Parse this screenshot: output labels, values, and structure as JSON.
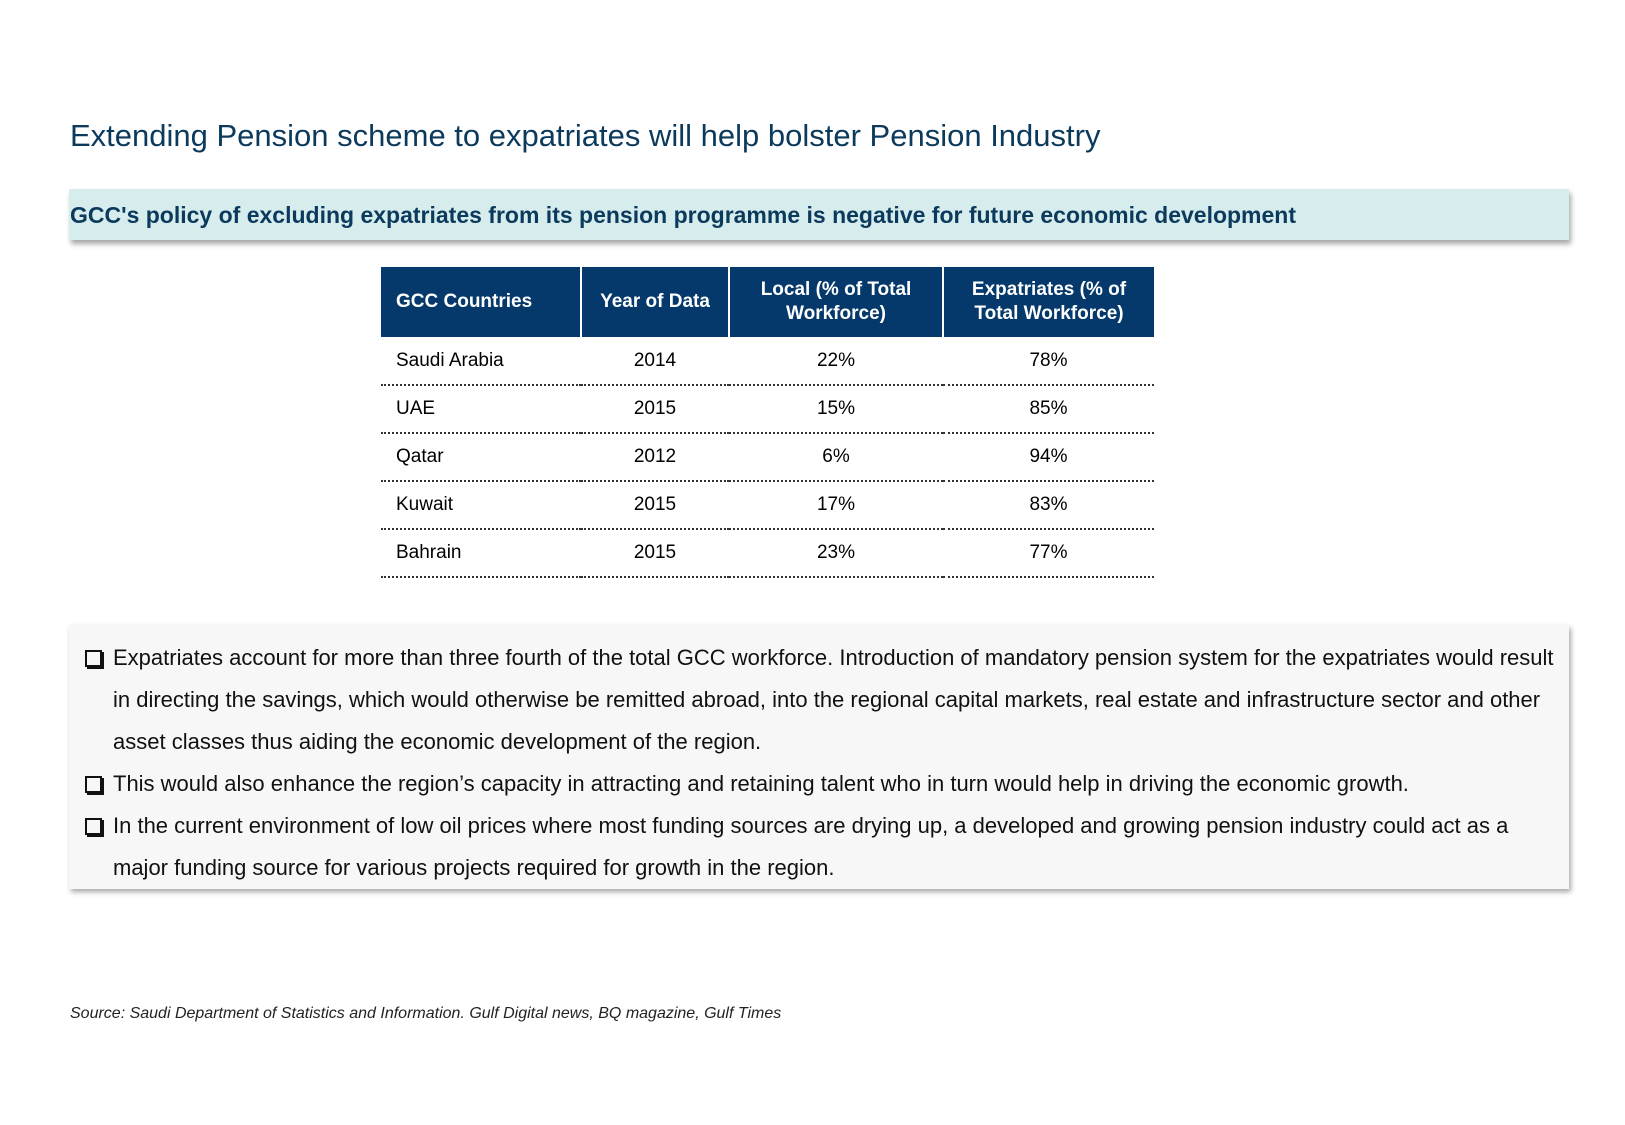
{
  "title": "Extending Pension scheme to expatriates will help bolster Pension Industry",
  "banner": "GCC's policy of excluding expatriates from its pension programme is negative for future economic development",
  "table": {
    "headers": [
      "GCC Countries",
      "Year of Data",
      "Local (% of Total Workforce)",
      "Expatriates (% of Total Workforce)"
    ],
    "rows": [
      [
        "Saudi Arabia",
        "2014",
        "22%",
        "78%"
      ],
      [
        "UAE",
        "2015",
        "15%",
        "85%"
      ],
      [
        "Qatar",
        "2012",
        "6%",
        "94%"
      ],
      [
        "Kuwait",
        "2015",
        "17%",
        "83%"
      ],
      [
        "Bahrain",
        "2015",
        "23%",
        "77%"
      ]
    ]
  },
  "bullets": [
    "Expatriates account for more than three fourth of the total GCC workforce. Introduction of mandatory pension system for the expatriates would result in directing the savings, which would otherwise be remitted abroad, into the regional capital markets, real estate and infrastructure sector and other asset classes thus aiding the economic development of the region.",
    "This would also enhance the region’s capacity in attracting and retaining talent who in turn would help in driving the economic growth.",
    "In the current environment of low oil prices where most funding sources are drying up, a developed and growing pension industry could act as a major funding source for various projects required for growth in the region."
  ],
  "bullet_icon": "checkbox-icon",
  "source": "Source: Saudi Department of Statistics and Information. Gulf Digital news, BQ magazine, Gulf Times",
  "colors": {
    "title": "#0b3a5c",
    "banner_bg": "#d6eced",
    "table_header_bg": "#05396b",
    "bullets_bg": "#f7f7f7"
  }
}
